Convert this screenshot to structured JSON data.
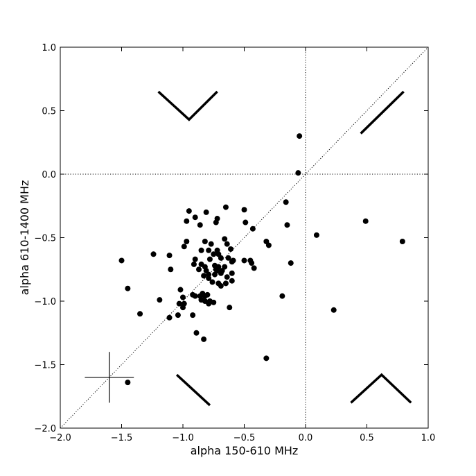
{
  "chart_data": {
    "type": "scatter",
    "title": "",
    "xlabel": "alpha 150-610 MHz",
    "ylabel": "alpha 610-1400 MHz",
    "xlim": [
      -2.0,
      1.0
    ],
    "ylim": [
      -2.0,
      1.0
    ],
    "x_ticks": [
      "−2.0",
      "−1.5",
      "−1.0",
      "−0.5",
      "0.0",
      "0.5",
      "1.0"
    ],
    "y_ticks": [
      "−2.0",
      "−1.5",
      "−1.0",
      "−0.5",
      "0.0",
      "0.5",
      "1.0"
    ],
    "grid": false,
    "reference_lines": {
      "x_zero": true,
      "y_zero": true,
      "one_to_one": true,
      "style": "dotted"
    },
    "error_bar_example": {
      "x": -1.6,
      "y": -1.6,
      "x_err": 0.2,
      "y_err": 0.2
    },
    "spectral_shape_glyphs": {
      "top_left": [
        [
          -1.2,
          0.65
        ],
        [
          -0.95,
          0.43
        ],
        [
          -0.72,
          0.65
        ]
      ],
      "top_right": [
        [
          0.45,
          0.32
        ],
        [
          0.8,
          0.65
        ]
      ],
      "bottom_left": [
        [
          -1.05,
          -1.58
        ],
        [
          -0.78,
          -1.82
        ]
      ],
      "bottom_right": [
        [
          0.37,
          -1.8
        ],
        [
          0.62,
          -1.58
        ],
        [
          0.86,
          -1.8
        ]
      ]
    },
    "marker_color": "#000000",
    "points": [
      [
        -0.05,
        0.3
      ],
      [
        -0.06,
        0.01
      ],
      [
        -0.95,
        -0.29
      ],
      [
        -0.9,
        -0.34
      ],
      [
        -0.97,
        -0.53
      ],
      [
        -0.86,
        -0.4
      ],
      [
        -0.99,
        -0.57
      ],
      [
        -0.97,
        -0.37
      ],
      [
        -0.81,
        -0.3
      ],
      [
        -0.65,
        -0.26
      ],
      [
        -0.5,
        -0.28
      ],
      [
        -0.49,
        -0.38
      ],
      [
        -0.43,
        -0.43
      ],
      [
        -0.73,
        -0.38
      ],
      [
        -0.72,
        -0.35
      ],
      [
        -0.82,
        -0.53
      ],
      [
        -0.77,
        -0.55
      ],
      [
        -0.72,
        -0.6
      ],
      [
        -0.66,
        -0.51
      ],
      [
        -0.64,
        -0.55
      ],
      [
        -0.61,
        -0.59
      ],
      [
        -0.85,
        -0.6
      ],
      [
        -0.79,
        -0.6
      ],
      [
        -0.78,
        -0.67
      ],
      [
        -0.75,
        -0.63
      ],
      [
        -0.71,
        -0.63
      ],
      [
        -0.69,
        -0.66
      ],
      [
        -0.63,
        -0.66
      ],
      [
        -0.59,
        -0.68
      ],
      [
        -0.6,
        -0.69
      ],
      [
        -0.9,
        -0.67
      ],
      [
        -0.91,
        -0.71
      ],
      [
        -0.85,
        -0.71
      ],
      [
        -0.87,
        -0.75
      ],
      [
        -0.82,
        -0.73
      ],
      [
        -0.81,
        -0.76
      ],
      [
        -0.79,
        -0.79
      ],
      [
        -0.74,
        -0.72
      ],
      [
        -0.73,
        -0.75
      ],
      [
        -0.71,
        -0.73
      ],
      [
        -0.68,
        -0.76
      ],
      [
        -0.66,
        -0.73
      ],
      [
        -0.72,
        -0.76
      ],
      [
        -0.69,
        -0.78
      ],
      [
        -0.74,
        -0.79
      ],
      [
        -0.6,
        -0.78
      ],
      [
        -0.64,
        -0.81
      ],
      [
        -0.6,
        -0.84
      ],
      [
        -0.65,
        -0.86
      ],
      [
        -0.71,
        -0.86
      ],
      [
        -0.69,
        -0.88
      ],
      [
        -0.76,
        -0.85
      ],
      [
        -0.83,
        -0.8
      ],
      [
        -0.79,
        -0.82
      ],
      [
        -0.9,
        -0.96
      ],
      [
        -0.92,
        -0.95
      ],
      [
        -0.86,
        -0.96
      ],
      [
        -0.84,
        -0.94
      ],
      [
        -0.82,
        -0.96
      ],
      [
        -0.8,
        -0.95
      ],
      [
        -0.85,
        -0.99
      ],
      [
        -0.82,
        -1.0
      ],
      [
        -0.78,
        -1.0
      ],
      [
        -0.79,
        -1.02
      ],
      [
        -0.75,
        -1.01
      ],
      [
        -0.62,
        -1.05
      ],
      [
        -0.85,
        -0.99
      ],
      [
        -1.02,
        -0.91
      ],
      [
        -1.0,
        -0.97
      ],
      [
        -1.03,
        -1.02
      ],
      [
        -0.99,
        -1.02
      ],
      [
        -1.0,
        -1.05
      ],
      [
        -0.92,
        -1.11
      ],
      [
        -1.04,
        -1.11
      ],
      [
        -1.11,
        -1.13
      ],
      [
        -1.19,
        -0.99
      ],
      [
        -1.11,
        -0.64
      ],
      [
        -1.24,
        -0.63
      ],
      [
        -1.1,
        -0.75
      ],
      [
        -1.5,
        -0.68
      ],
      [
        -1.45,
        -0.9
      ],
      [
        -1.35,
        -1.1
      ],
      [
        -0.89,
        -1.25
      ],
      [
        -0.83,
        -1.3
      ],
      [
        -0.5,
        -0.68
      ],
      [
        -0.45,
        -0.68
      ],
      [
        -0.44,
        -0.7
      ],
      [
        -0.42,
        -0.74
      ],
      [
        -0.32,
        -0.53
      ],
      [
        -0.3,
        -0.56
      ],
      [
        -0.16,
        -0.22
      ],
      [
        -0.15,
        -0.4
      ],
      [
        -0.12,
        -0.7
      ],
      [
        -0.19,
        -0.96
      ],
      [
        -0.32,
        -1.45
      ],
      [
        0.09,
        -0.48
      ],
      [
        0.23,
        -1.07
      ],
      [
        0.49,
        -0.37
      ],
      [
        0.79,
        -0.53
      ],
      [
        -1.45,
        -1.64
      ]
    ]
  }
}
